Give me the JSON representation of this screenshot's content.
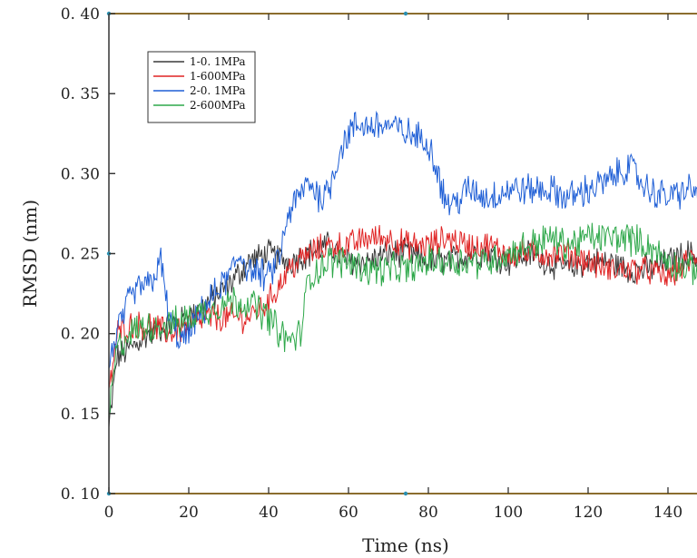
{
  "chart_data": {
    "type": "line",
    "title": "",
    "xlabel": "Time (ns)",
    "ylabel": "RMSD (nm)",
    "xlim": [
      0,
      150
    ],
    "ylim": [
      0.1,
      0.4
    ],
    "x_ticks": [
      0,
      20,
      40,
      60,
      80,
      100,
      120,
      140
    ],
    "x_tick_labels": [
      "0",
      "20",
      "40",
      "60",
      "80",
      "100",
      "120",
      "140"
    ],
    "y_ticks": [
      0.1,
      0.15,
      0.2,
      0.25,
      0.3,
      0.35,
      0.4
    ],
    "y_tick_labels": [
      "0. 10",
      "0. 15",
      "0. 20",
      "0. 25",
      "0. 30",
      "0. 35",
      "0. 40"
    ],
    "grid": false,
    "legend_position": "top-left",
    "series": [
      {
        "name": "1-0. 1MPa",
        "color": "#3a3a3a",
        "x": [
          0,
          2,
          5,
          10,
          15,
          20,
          25,
          30,
          35,
          40,
          45,
          50,
          55,
          60,
          65,
          70,
          75,
          80,
          85,
          90,
          95,
          100,
          105,
          110,
          115,
          120,
          125,
          130,
          135,
          140,
          145,
          150
        ],
        "y": [
          0.14,
          0.185,
          0.19,
          0.2,
          0.205,
          0.21,
          0.22,
          0.23,
          0.245,
          0.25,
          0.245,
          0.25,
          0.255,
          0.245,
          0.245,
          0.25,
          0.25,
          0.245,
          0.245,
          0.25,
          0.25,
          0.245,
          0.25,
          0.245,
          0.24,
          0.245,
          0.245,
          0.24,
          0.24,
          0.245,
          0.25,
          0.245
        ],
        "noise": 0.008
      },
      {
        "name": "1-600MPa",
        "color": "#e02424",
        "x": [
          0,
          2,
          5,
          10,
          15,
          20,
          25,
          30,
          35,
          40,
          45,
          50,
          55,
          60,
          65,
          70,
          75,
          80,
          85,
          90,
          95,
          100,
          105,
          110,
          115,
          120,
          125,
          130,
          135,
          140,
          145,
          150
        ],
        "y": [
          0.16,
          0.2,
          0.205,
          0.205,
          0.2,
          0.205,
          0.21,
          0.21,
          0.21,
          0.22,
          0.24,
          0.25,
          0.255,
          0.255,
          0.26,
          0.26,
          0.255,
          0.255,
          0.26,
          0.255,
          0.255,
          0.25,
          0.25,
          0.25,
          0.25,
          0.245,
          0.24,
          0.24,
          0.24,
          0.235,
          0.245,
          0.25
        ],
        "noise": 0.008
      },
      {
        "name": "2-0. 1MPa",
        "color": "#1f5fd6",
        "x": [
          0,
          2,
          5,
          8,
          10,
          13,
          15,
          18,
          20,
          25,
          30,
          33,
          35,
          40,
          43,
          45,
          50,
          53,
          55,
          58,
          60,
          62,
          65,
          70,
          75,
          80,
          82,
          84,
          86,
          90,
          95,
          100,
          105,
          110,
          115,
          120,
          125,
          130,
          135,
          140,
          145,
          150
        ],
        "y": [
          0.18,
          0.2,
          0.22,
          0.23,
          0.23,
          0.245,
          0.21,
          0.195,
          0.2,
          0.22,
          0.235,
          0.25,
          0.24,
          0.235,
          0.25,
          0.275,
          0.295,
          0.285,
          0.29,
          0.315,
          0.325,
          0.33,
          0.33,
          0.33,
          0.325,
          0.32,
          0.305,
          0.285,
          0.28,
          0.29,
          0.285,
          0.29,
          0.29,
          0.29,
          0.285,
          0.29,
          0.295,
          0.305,
          0.29,
          0.285,
          0.29,
          0.285
        ],
        "noise": 0.009
      },
      {
        "name": "2-600MPa",
        "color": "#2ea84a",
        "x": [
          0,
          2,
          5,
          10,
          15,
          20,
          25,
          30,
          35,
          40,
          43,
          45,
          48,
          50,
          55,
          60,
          65,
          70,
          75,
          80,
          85,
          90,
          95,
          100,
          105,
          110,
          115,
          120,
          125,
          130,
          135,
          140,
          145,
          150
        ],
        "y": [
          0.15,
          0.19,
          0.2,
          0.205,
          0.205,
          0.21,
          0.215,
          0.22,
          0.22,
          0.21,
          0.2,
          0.195,
          0.2,
          0.235,
          0.245,
          0.245,
          0.24,
          0.24,
          0.24,
          0.245,
          0.245,
          0.245,
          0.245,
          0.25,
          0.255,
          0.26,
          0.255,
          0.26,
          0.26,
          0.26,
          0.255,
          0.245,
          0.24,
          0.24
        ],
        "noise": 0.009
      }
    ]
  }
}
